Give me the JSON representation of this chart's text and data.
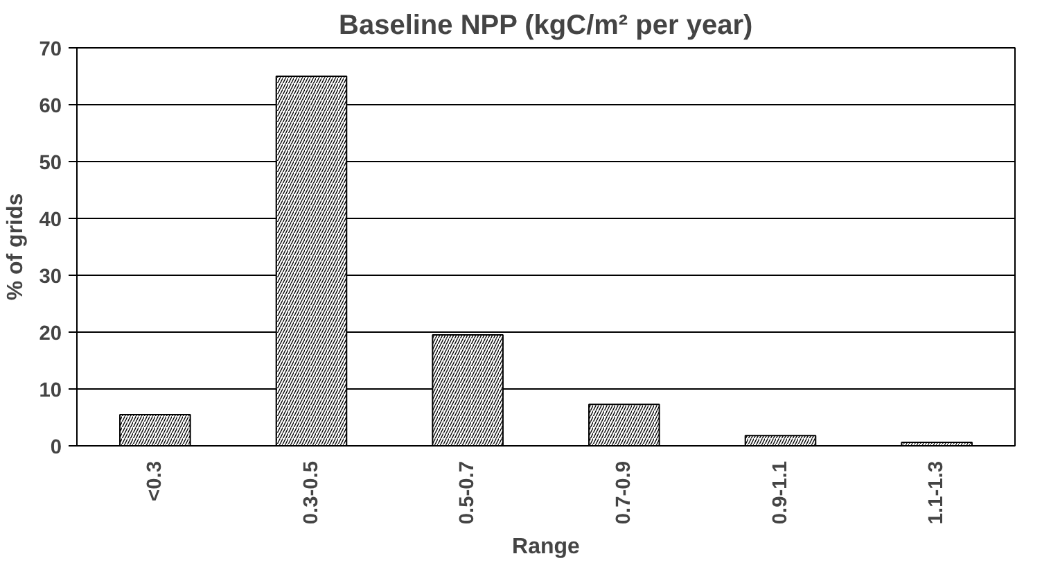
{
  "chart_data": {
    "type": "bar",
    "title": "Baseline NPP (kgC/m² per year)",
    "xlabel": "Range",
    "ylabel": "% of grids",
    "categories": [
      "<0.3",
      "0.3-0.5",
      "0.5-0.7",
      "0.7-0.9",
      "0.9-1.1",
      "1.1-1.3"
    ],
    "values": [
      5.5,
      65,
      19.5,
      7.3,
      1.8,
      0.6
    ],
    "color": "#ffffff",
    "ylim": [
      0,
      70
    ],
    "yticks": [
      0,
      10,
      20,
      30,
      40,
      50,
      60,
      70
    ],
    "grid": "y"
  }
}
